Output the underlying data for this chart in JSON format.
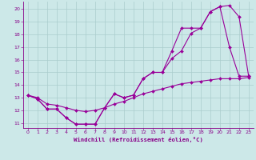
{
  "xlabel": "Windchill (Refroidissement éolien,°C)",
  "bg_color": "#cce8e8",
  "line_color": "#990099",
  "grid_color": "#aacccc",
  "xlim": [
    -0.5,
    23.5
  ],
  "ylim": [
    10.6,
    20.6
  ],
  "yticks": [
    11,
    12,
    13,
    14,
    15,
    16,
    17,
    18,
    19,
    20
  ],
  "xticks": [
    0,
    1,
    2,
    3,
    4,
    5,
    6,
    7,
    8,
    9,
    10,
    11,
    12,
    13,
    14,
    15,
    16,
    17,
    18,
    19,
    20,
    21,
    22,
    23
  ],
  "line1_x": [
    0,
    1,
    2,
    3,
    4,
    5,
    6,
    7,
    8,
    9,
    10,
    11,
    12,
    13,
    14,
    15,
    16,
    17,
    18,
    19,
    20,
    21,
    22,
    23
  ],
  "line1_y": [
    13.2,
    12.9,
    12.1,
    12.1,
    11.4,
    10.9,
    10.9,
    10.9,
    12.2,
    13.3,
    13.0,
    13.2,
    14.5,
    15.0,
    15.0,
    16.1,
    16.7,
    18.1,
    18.5,
    19.8,
    20.2,
    20.3,
    19.4,
    14.7
  ],
  "line2_x": [
    0,
    1,
    2,
    3,
    4,
    5,
    6,
    7,
    8,
    9,
    10,
    11,
    12,
    13,
    14,
    15,
    16,
    17,
    18,
    19,
    20,
    21,
    22,
    23
  ],
  "line2_y": [
    13.2,
    12.9,
    12.1,
    12.1,
    11.4,
    10.9,
    10.9,
    10.9,
    12.2,
    13.3,
    13.0,
    13.2,
    14.5,
    15.0,
    15.0,
    16.7,
    18.5,
    18.5,
    18.5,
    19.8,
    20.2,
    17.0,
    14.7,
    14.7
  ],
  "line3_x": [
    0,
    1,
    2,
    3,
    4,
    5,
    6,
    7,
    8,
    9,
    10,
    11,
    12,
    13,
    14,
    15,
    16,
    17,
    18,
    19,
    20,
    21,
    22,
    23
  ],
  "line3_y": [
    13.2,
    13.0,
    12.5,
    12.4,
    12.2,
    12.0,
    11.9,
    12.0,
    12.2,
    12.5,
    12.7,
    13.0,
    13.3,
    13.5,
    13.7,
    13.9,
    14.1,
    14.2,
    14.3,
    14.4,
    14.5,
    14.5,
    14.5,
    14.6
  ],
  "label_color": "#880088",
  "tick_labelsize": 4.5,
  "xlabel_fontsize": 5.2,
  "marker_size": 2.0
}
